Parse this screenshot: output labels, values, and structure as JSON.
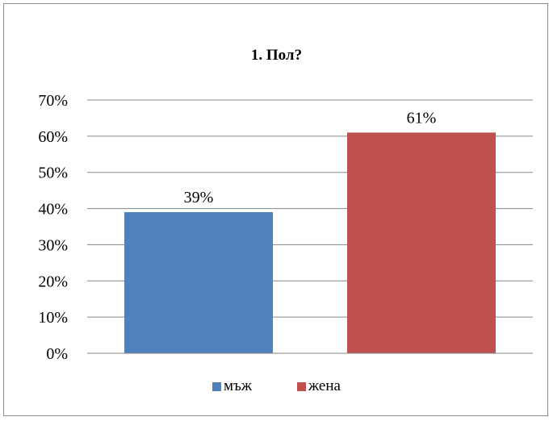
{
  "chart_data": {
    "type": "bar",
    "title": "1. Пол?",
    "categories": [
      "мъж",
      "жена"
    ],
    "values": [
      39,
      61
    ],
    "data_labels": [
      "39%",
      "61%"
    ],
    "colors": [
      "#4f81bd",
      "#c0504d"
    ],
    "ylim": [
      0,
      70
    ],
    "yticks": [
      0,
      10,
      20,
      30,
      40,
      50,
      60,
      70
    ],
    "ytick_labels": [
      "0%",
      "10%",
      "20%",
      "30%",
      "40%",
      "50%",
      "60%",
      "70%"
    ],
    "grid": true,
    "legend": {
      "placement": "bottom",
      "entries": [
        "мъж",
        "жена"
      ]
    }
  }
}
